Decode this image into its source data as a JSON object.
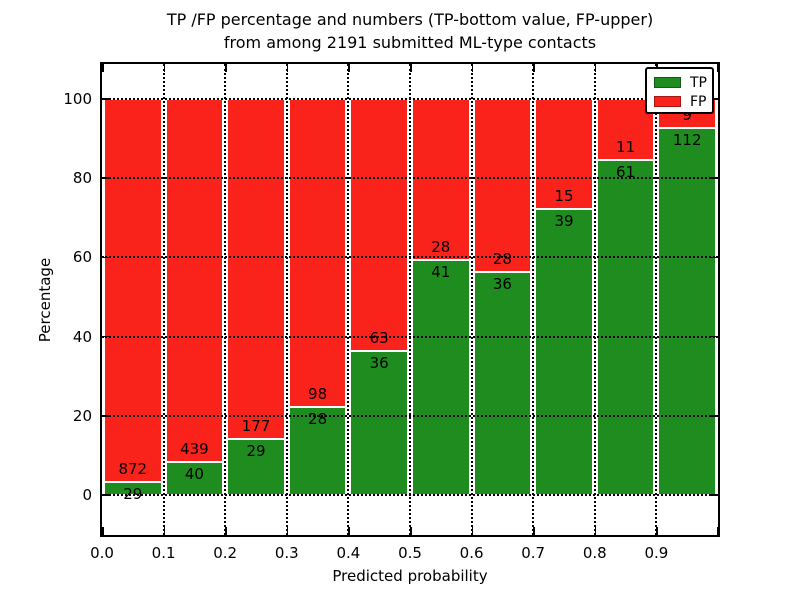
{
  "title": {
    "line1": "TP /FP percentage and numbers (TP-bottom value, FP-upper)",
    "line2": "from among 2191 submitted ML-type contacts"
  },
  "axes": {
    "xlabel": "Predicted probability",
    "ylabel": "Percentage",
    "x_tick_labels": [
      "0.0",
      "0.1",
      "0.2",
      "0.3",
      "0.4",
      "0.5",
      "0.6",
      "0.7",
      "0.8",
      "0.9"
    ],
    "y_tick_values": [
      0,
      20,
      40,
      60,
      80,
      100
    ],
    "y_tick_labels": [
      "0",
      "20",
      "40",
      "60",
      "80",
      "100"
    ],
    "grid_style": "dotted"
  },
  "legend": {
    "position": "upper-right",
    "items": [
      {
        "label": "TP",
        "color": "#1f8c1f"
      },
      {
        "label": "FP",
        "color": "#fa231c"
      }
    ]
  },
  "chart_data": {
    "type": "bar",
    "variant": "stacked-100-percent",
    "title": "TP /FP percentage and numbers (TP-bottom value, FP-upper) from among 2191 submitted ML-type contacts",
    "xlabel": "Predicted probability",
    "ylabel": "Percentage",
    "xlim": [
      0.0,
      1.0
    ],
    "ylim": [
      0,
      100
    ],
    "grid": true,
    "legend_position": "upper-right",
    "bins": [
      "0.0-0.1",
      "0.1-0.2",
      "0.2-0.3",
      "0.3-0.4",
      "0.4-0.5",
      "0.5-0.6",
      "0.6-0.7",
      "0.7-0.8",
      "0.8-0.9",
      "0.9-1.0"
    ],
    "series": [
      {
        "name": "TP",
        "color": "#1f8c1f",
        "values": [
          29,
          40,
          29,
          28,
          36,
          41,
          36,
          39,
          61,
          112
        ]
      },
      {
        "name": "FP",
        "color": "#fa231c",
        "values": [
          872,
          439,
          177,
          98,
          63,
          28,
          28,
          15,
          11,
          9
        ]
      }
    ],
    "tp_percent_of_bin": [
      3.2,
      8.4,
      14.1,
      22.2,
      36.4,
      59.4,
      56.3,
      72.2,
      84.7,
      92.6
    ],
    "total_contacts": 2191
  }
}
